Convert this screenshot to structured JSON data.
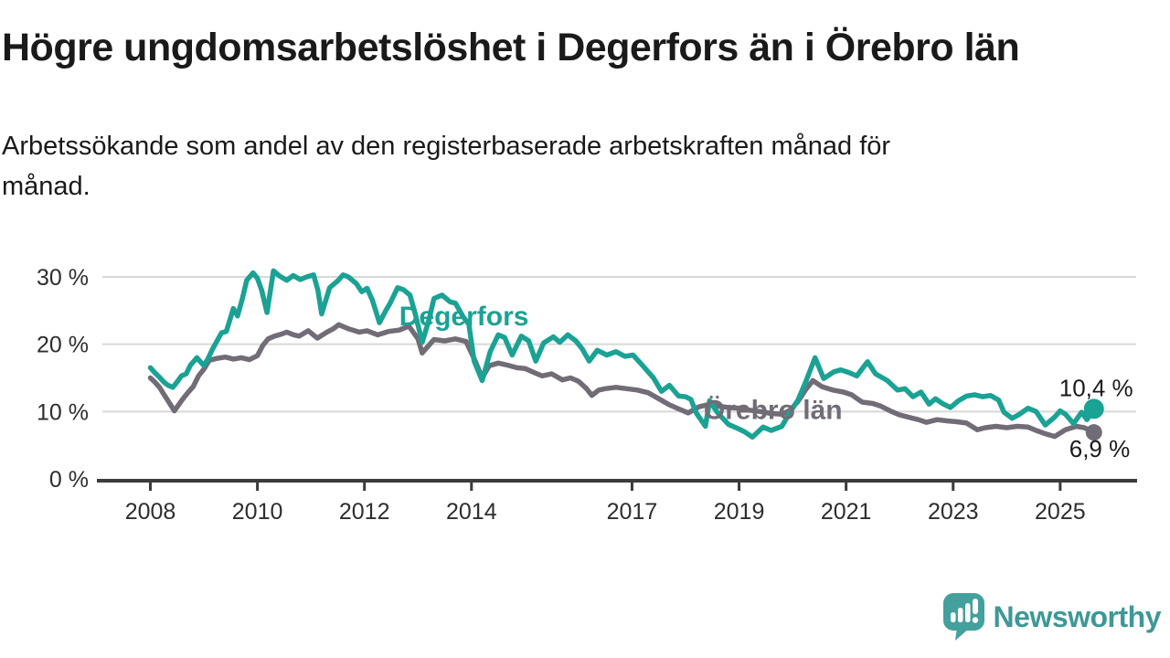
{
  "header": {
    "title": "Högre ungdomsarbetslöshet i Degerfors än i Örebro län",
    "subtitle_lines": [
      "Arbetssökande som andel av den registerbaserade arbetskraften månad för",
      "månad."
    ],
    "subtitle_full": "Arbetssökande som andel av den registerbaserade arbetskraften månad för månad."
  },
  "branding": {
    "wordmark": "Newsworthy",
    "icon": "speech-bubble-bar-chart-icon",
    "icon_color": "#43a09d",
    "wordmark_color": "#3e9896"
  },
  "chart_data": {
    "type": "line",
    "unit": "%",
    "grid": "horizontal",
    "legend_position": "inline-labels",
    "colors": {
      "grid": "#d8d8d8",
      "axis": "#3b3b3b",
      "axis_text": "#2e2e2e",
      "value_label": "#1a1a1a"
    },
    "x_axis": {
      "tick_years": [
        2008,
        2010,
        2012,
        2014,
        2017,
        2019,
        2021,
        2023,
        2025
      ],
      "range": [
        2008,
        2026.3
      ]
    },
    "y_axis": {
      "ticks": [
        0,
        10,
        20,
        30
      ],
      "tick_labels": [
        "0 %",
        "10 %",
        "20 %",
        "30 %"
      ],
      "range": [
        0,
        33
      ]
    },
    "series": [
      {
        "id": "degerfors",
        "name": "Degerfors",
        "color": "#1aa294",
        "end_value": 10.4,
        "end_label": "10,4 %",
        "inline_label": {
          "x_year": 2012.65,
          "y_value": 22.8
        },
        "points": [
          [
            2008.0,
            16.5
          ],
          [
            2008.08,
            15.8
          ],
          [
            2008.17,
            15.1
          ],
          [
            2008.25,
            14.4
          ],
          [
            2008.33,
            13.9
          ],
          [
            2008.42,
            13.6
          ],
          [
            2008.5,
            14.4
          ],
          [
            2008.58,
            15.3
          ],
          [
            2008.67,
            15.6
          ],
          [
            2008.75,
            16.9
          ],
          [
            2008.87,
            18.0
          ],
          [
            2009.0,
            16.8
          ],
          [
            2009.08,
            17.9
          ],
          [
            2009.17,
            19.4
          ],
          [
            2009.33,
            21.7
          ],
          [
            2009.42,
            21.9
          ],
          [
            2009.55,
            25.3
          ],
          [
            2009.63,
            24.2
          ],
          [
            2009.72,
            26.8
          ],
          [
            2009.8,
            29.5
          ],
          [
            2009.92,
            30.6
          ],
          [
            2010.0,
            29.8
          ],
          [
            2010.08,
            28.0
          ],
          [
            2010.18,
            24.7
          ],
          [
            2010.3,
            30.9
          ],
          [
            2010.42,
            30.1
          ],
          [
            2010.55,
            29.5
          ],
          [
            2010.67,
            30.2
          ],
          [
            2010.8,
            29.6
          ],
          [
            2010.92,
            30.0
          ],
          [
            2011.05,
            30.3
          ],
          [
            2011.13,
            28.0
          ],
          [
            2011.2,
            24.5
          ],
          [
            2011.35,
            28.4
          ],
          [
            2011.5,
            29.4
          ],
          [
            2011.6,
            30.3
          ],
          [
            2011.7,
            30.0
          ],
          [
            2011.85,
            29.0
          ],
          [
            2011.95,
            27.8
          ],
          [
            2012.05,
            28.3
          ],
          [
            2012.15,
            26.5
          ],
          [
            2012.28,
            23.2
          ],
          [
            2012.4,
            25.0
          ],
          [
            2012.48,
            26.1
          ],
          [
            2012.62,
            28.4
          ],
          [
            2012.73,
            28.1
          ],
          [
            2012.85,
            27.3
          ],
          [
            2012.95,
            24.5
          ],
          [
            2013.08,
            20.3
          ],
          [
            2013.2,
            23.5
          ],
          [
            2013.3,
            26.8
          ],
          [
            2013.45,
            27.3
          ],
          [
            2013.6,
            26.3
          ],
          [
            2013.7,
            26.1
          ],
          [
            2013.85,
            24.0
          ],
          [
            2013.95,
            23.0
          ],
          [
            2014.05,
            17.5
          ],
          [
            2014.2,
            14.6
          ],
          [
            2014.35,
            18.9
          ],
          [
            2014.5,
            21.4
          ],
          [
            2014.62,
            21.0
          ],
          [
            2014.76,
            18.4
          ],
          [
            2014.93,
            21.2
          ],
          [
            2015.07,
            20.5
          ],
          [
            2015.2,
            17.5
          ],
          [
            2015.35,
            20.2
          ],
          [
            2015.53,
            21.1
          ],
          [
            2015.65,
            20.3
          ],
          [
            2015.8,
            21.4
          ],
          [
            2015.95,
            20.5
          ],
          [
            2016.07,
            19.3
          ],
          [
            2016.2,
            17.5
          ],
          [
            2016.35,
            19.1
          ],
          [
            2016.53,
            18.4
          ],
          [
            2016.7,
            18.9
          ],
          [
            2016.87,
            18.2
          ],
          [
            2017.02,
            18.4
          ],
          [
            2017.2,
            16.8
          ],
          [
            2017.4,
            15.0
          ],
          [
            2017.55,
            13.0
          ],
          [
            2017.7,
            13.9
          ],
          [
            2017.87,
            12.3
          ],
          [
            2018.0,
            12.2
          ],
          [
            2018.1,
            11.8
          ],
          [
            2018.2,
            9.8
          ],
          [
            2018.37,
            7.8
          ],
          [
            2018.45,
            11.6
          ],
          [
            2018.6,
            9.8
          ],
          [
            2018.8,
            8.1
          ],
          [
            2019.0,
            7.4
          ],
          [
            2019.1,
            7.0
          ],
          [
            2019.25,
            6.2
          ],
          [
            2019.45,
            7.7
          ],
          [
            2019.6,
            7.2
          ],
          [
            2019.8,
            7.8
          ],
          [
            2019.96,
            10.0
          ],
          [
            2020.1,
            11.7
          ],
          [
            2020.25,
            14.5
          ],
          [
            2020.42,
            18.0
          ],
          [
            2020.58,
            14.9
          ],
          [
            2020.77,
            15.9
          ],
          [
            2020.9,
            16.2
          ],
          [
            2021.05,
            15.8
          ],
          [
            2021.2,
            15.3
          ],
          [
            2021.4,
            17.4
          ],
          [
            2021.55,
            15.6
          ],
          [
            2021.77,
            14.6
          ],
          [
            2021.96,
            13.2
          ],
          [
            2022.1,
            13.4
          ],
          [
            2022.25,
            12.2
          ],
          [
            2022.4,
            12.9
          ],
          [
            2022.55,
            11.1
          ],
          [
            2022.67,
            11.9
          ],
          [
            2022.8,
            11.2
          ],
          [
            2022.95,
            10.6
          ],
          [
            2023.1,
            11.6
          ],
          [
            2023.25,
            12.3
          ],
          [
            2023.4,
            12.5
          ],
          [
            2023.55,
            12.2
          ],
          [
            2023.7,
            12.4
          ],
          [
            2023.85,
            11.7
          ],
          [
            2023.95,
            9.9
          ],
          [
            2024.1,
            9.0
          ],
          [
            2024.22,
            9.5
          ],
          [
            2024.4,
            10.5
          ],
          [
            2024.55,
            10.0
          ],
          [
            2024.72,
            8.0
          ],
          [
            2024.9,
            9.2
          ],
          [
            2025.0,
            10.1
          ],
          [
            2025.1,
            9.6
          ],
          [
            2025.25,
            8.2
          ],
          [
            2025.4,
            9.9
          ],
          [
            2025.5,
            8.8
          ],
          [
            2025.63,
            10.4
          ]
        ]
      },
      {
        "id": "orebro-lan",
        "name": "Örebro län",
        "color": "#716c75",
        "end_value": 6.9,
        "end_label": "6,9 %",
        "inline_label": {
          "x_year": 2018.34,
          "y_value": 8.9
        },
        "points": [
          [
            2008.0,
            15.0
          ],
          [
            2008.08,
            14.4
          ],
          [
            2008.17,
            13.6
          ],
          [
            2008.25,
            12.6
          ],
          [
            2008.33,
            11.6
          ],
          [
            2008.45,
            10.1
          ],
          [
            2008.6,
            11.8
          ],
          [
            2008.7,
            12.8
          ],
          [
            2008.8,
            13.7
          ],
          [
            2008.9,
            15.3
          ],
          [
            2009.0,
            16.3
          ],
          [
            2009.1,
            17.6
          ],
          [
            2009.25,
            17.9
          ],
          [
            2009.4,
            18.1
          ],
          [
            2009.55,
            17.8
          ],
          [
            2009.7,
            18.0
          ],
          [
            2009.85,
            17.7
          ],
          [
            2010.0,
            18.3
          ],
          [
            2010.1,
            19.8
          ],
          [
            2010.2,
            20.8
          ],
          [
            2010.32,
            21.2
          ],
          [
            2010.45,
            21.5
          ],
          [
            2010.55,
            21.8
          ],
          [
            2010.68,
            21.4
          ],
          [
            2010.78,
            21.2
          ],
          [
            2010.95,
            22.0
          ],
          [
            2011.12,
            20.9
          ],
          [
            2011.3,
            21.8
          ],
          [
            2011.42,
            22.3
          ],
          [
            2011.52,
            22.9
          ],
          [
            2011.7,
            22.3
          ],
          [
            2011.9,
            21.8
          ],
          [
            2012.05,
            22.0
          ],
          [
            2012.25,
            21.4
          ],
          [
            2012.45,
            21.9
          ],
          [
            2012.65,
            22.1
          ],
          [
            2012.83,
            22.7
          ],
          [
            2013.0,
            20.8
          ],
          [
            2013.08,
            18.7
          ],
          [
            2013.3,
            20.7
          ],
          [
            2013.5,
            20.5
          ],
          [
            2013.7,
            20.8
          ],
          [
            2013.9,
            20.4
          ],
          [
            2014.07,
            17.5
          ],
          [
            2014.2,
            15.0
          ],
          [
            2014.33,
            16.8
          ],
          [
            2014.5,
            17.2
          ],
          [
            2014.67,
            16.9
          ],
          [
            2014.85,
            16.5
          ],
          [
            2015.0,
            16.4
          ],
          [
            2015.17,
            15.8
          ],
          [
            2015.32,
            15.3
          ],
          [
            2015.5,
            15.6
          ],
          [
            2015.7,
            14.7
          ],
          [
            2015.85,
            15.0
          ],
          [
            2016.0,
            14.5
          ],
          [
            2016.15,
            13.4
          ],
          [
            2016.25,
            12.4
          ],
          [
            2016.38,
            13.2
          ],
          [
            2016.5,
            13.4
          ],
          [
            2016.7,
            13.6
          ],
          [
            2016.9,
            13.4
          ],
          [
            2017.1,
            13.2
          ],
          [
            2017.3,
            12.8
          ],
          [
            2017.5,
            11.9
          ],
          [
            2017.7,
            11.0
          ],
          [
            2017.9,
            10.3
          ],
          [
            2018.05,
            9.8
          ],
          [
            2018.25,
            10.7
          ],
          [
            2018.4,
            11.0
          ],
          [
            2018.6,
            10.8
          ],
          [
            2018.8,
            10.6
          ],
          [
            2019.0,
            10.5
          ],
          [
            2019.2,
            10.2
          ],
          [
            2019.4,
            10.0
          ],
          [
            2019.6,
            9.7
          ],
          [
            2019.8,
            9.6
          ],
          [
            2019.95,
            10.2
          ],
          [
            2020.1,
            11.5
          ],
          [
            2020.25,
            13.3
          ],
          [
            2020.38,
            14.6
          ],
          [
            2020.55,
            13.7
          ],
          [
            2020.75,
            13.2
          ],
          [
            2020.95,
            12.9
          ],
          [
            2021.1,
            12.5
          ],
          [
            2021.3,
            11.4
          ],
          [
            2021.5,
            11.2
          ],
          [
            2021.65,
            10.8
          ],
          [
            2021.85,
            10.0
          ],
          [
            2022.0,
            9.5
          ],
          [
            2022.2,
            9.1
          ],
          [
            2022.35,
            8.8
          ],
          [
            2022.5,
            8.4
          ],
          [
            2022.7,
            8.8
          ],
          [
            2022.9,
            8.6
          ],
          [
            2023.05,
            8.5
          ],
          [
            2023.25,
            8.3
          ],
          [
            2023.45,
            7.3
          ],
          [
            2023.6,
            7.6
          ],
          [
            2023.8,
            7.8
          ],
          [
            2024.0,
            7.6
          ],
          [
            2024.2,
            7.8
          ],
          [
            2024.4,
            7.7
          ],
          [
            2024.55,
            7.2
          ],
          [
            2024.72,
            6.7
          ],
          [
            2024.9,
            6.3
          ],
          [
            2025.1,
            7.3
          ],
          [
            2025.3,
            7.8
          ],
          [
            2025.45,
            7.6
          ],
          [
            2025.63,
            6.9
          ]
        ]
      }
    ]
  }
}
